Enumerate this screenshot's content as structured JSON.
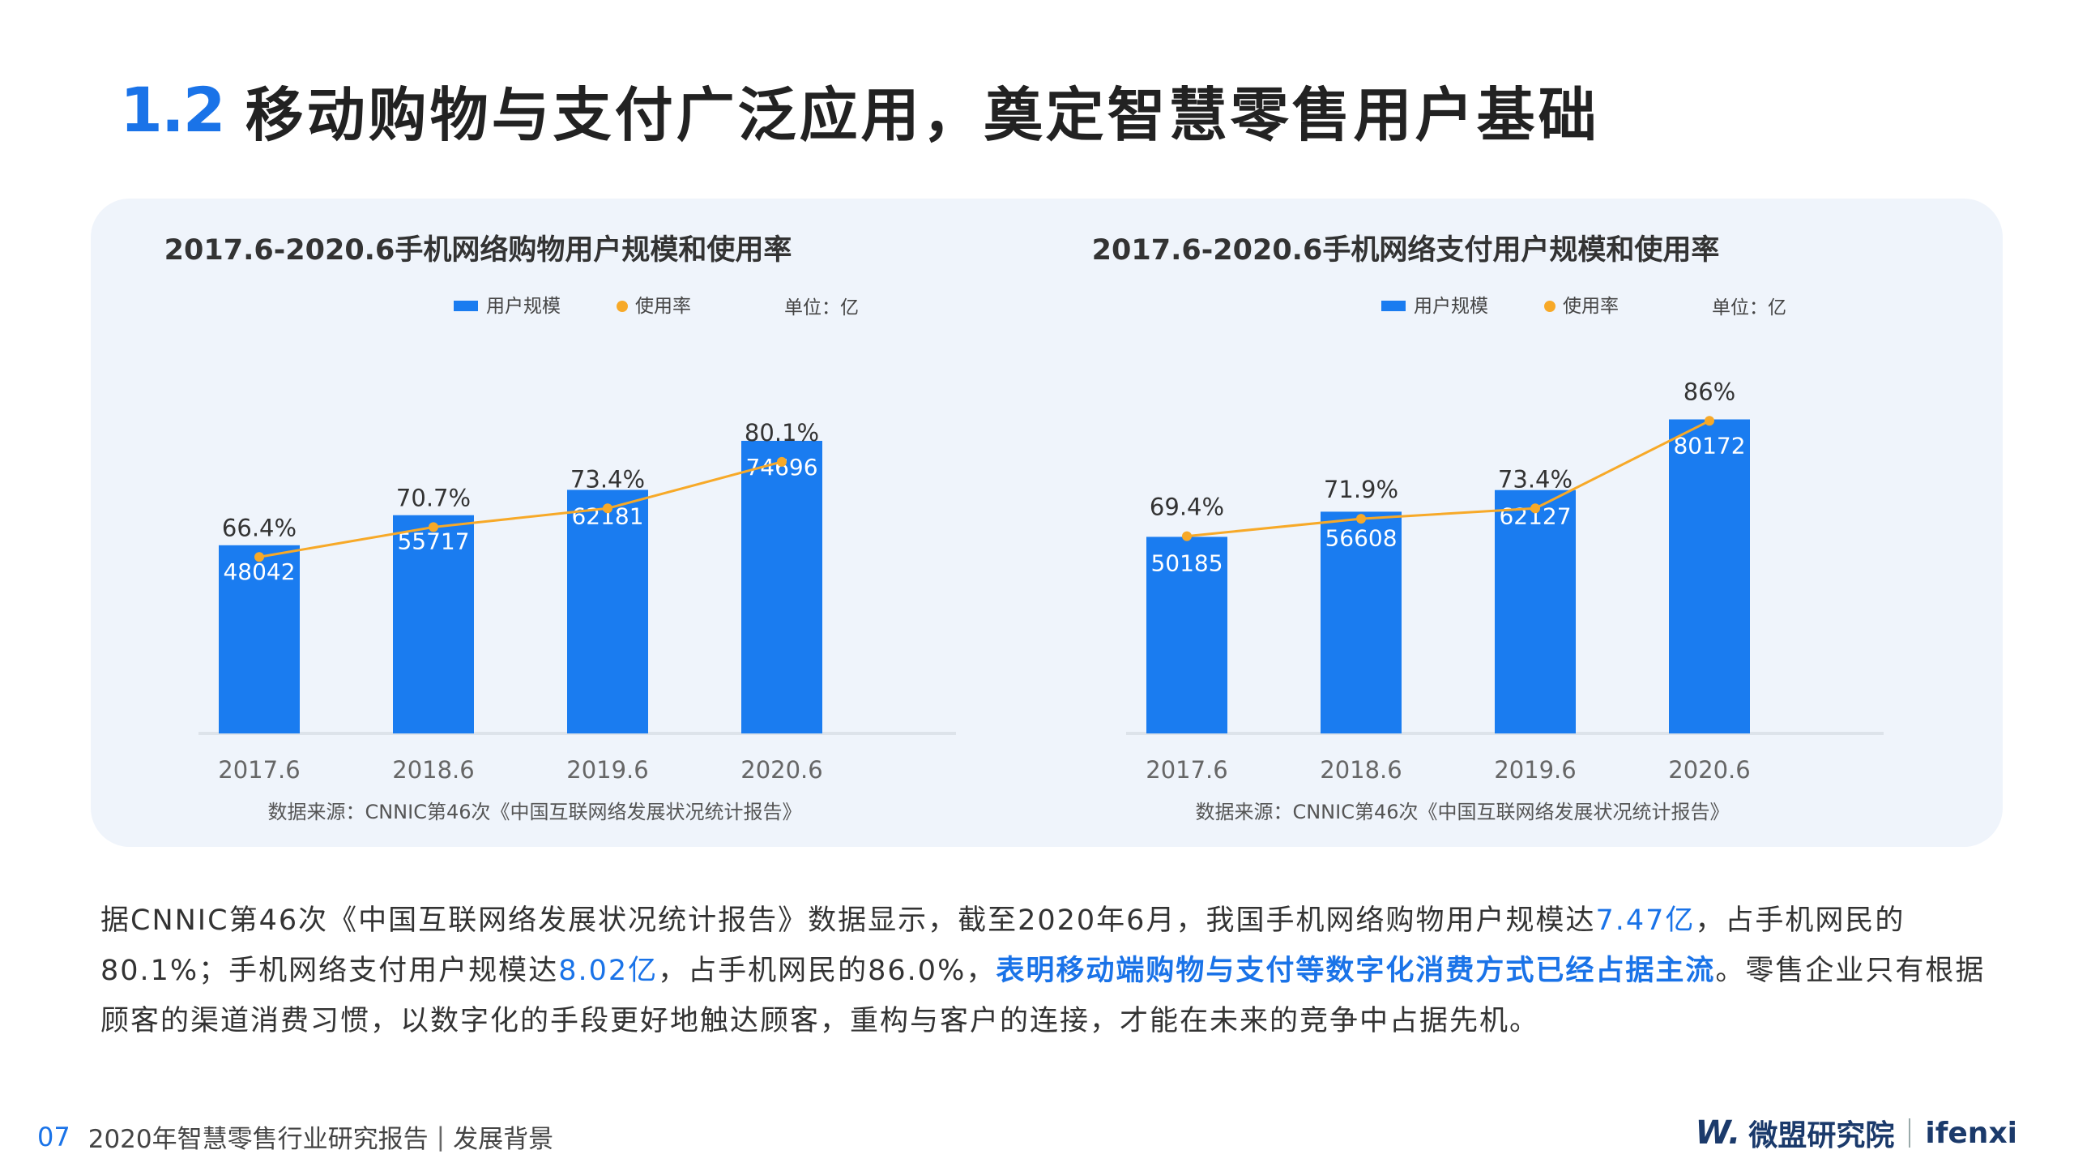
{
  "header": {
    "number": "1.2",
    "title": "移动购物与支付广泛应用，奠定智慧零售用户基础"
  },
  "chart_data": [
    {
      "type": "bar",
      "title": "2017.6-2020.6手机网络购物用户规模和使用率",
      "unit": "单位：亿",
      "legend": [
        "用户规模",
        "使用率"
      ],
      "categories": [
        "2017.6",
        "2018.6",
        "2019.6",
        "2020.6"
      ],
      "series": [
        {
          "name": "用户规模",
          "type": "bar",
          "values": [
            48042,
            55717,
            62181,
            74696
          ],
          "color": "#1a7cf0"
        },
        {
          "name": "使用率",
          "type": "line",
          "values": [
            66.4,
            70.7,
            73.4,
            80.1
          ],
          "labels": [
            "66.4%",
            "70.7%",
            "73.4%",
            "80.1%"
          ],
          "color": "#f7a928"
        }
      ],
      "source": "数据来源：CNNIC第46次《中国互联网络发展状况统计报告》"
    },
    {
      "type": "bar",
      "title": "2017.6-2020.6手机网络支付用户规模和使用率",
      "unit": "单位：亿",
      "legend": [
        "用户规模",
        "使用率"
      ],
      "categories": [
        "2017.6",
        "2018.6",
        "2019.6",
        "2020.6"
      ],
      "series": [
        {
          "name": "用户规模",
          "type": "bar",
          "values": [
            50185,
            56608,
            62127,
            80172
          ],
          "color": "#1a7cf0"
        },
        {
          "name": "使用率",
          "type": "line",
          "values": [
            69.4,
            71.9,
            73.4,
            86
          ],
          "labels": [
            "69.4%",
            "71.9%",
            "73.4%",
            "86%"
          ],
          "color": "#f7a928"
        }
      ],
      "source": "数据来源：CNNIC第46次《中国互联网络发展状况统计报告》"
    }
  ],
  "body": {
    "p1": "据CNNIC第46次《中国互联网络发展状况统计报告》数据显示，截至2020年6月，我国手机网络购物用户规模达",
    "v1": "7.47亿",
    "p2": "，占手机网民的80.1%；手机网络支付用户规模达",
    "v2": "8.02亿",
    "p3": "，占手机网民的86.0%，",
    "v3": "表明移动端购物与支付等数字化消费方式已经占据主流",
    "p4": "。零售企业只有根据顾客的渠道消费习惯，以数字化的手段更好地触达顾客，重构与客户的连接，才能在未来的竞争中占据先机。"
  },
  "footer": {
    "page": "07",
    "report": "2020年智慧零售行业研究报告",
    "separator": "|",
    "section": "发展背景"
  },
  "logo": {
    "mark": "W.",
    "name": "微盟研究院",
    "en": "ifenxi"
  }
}
